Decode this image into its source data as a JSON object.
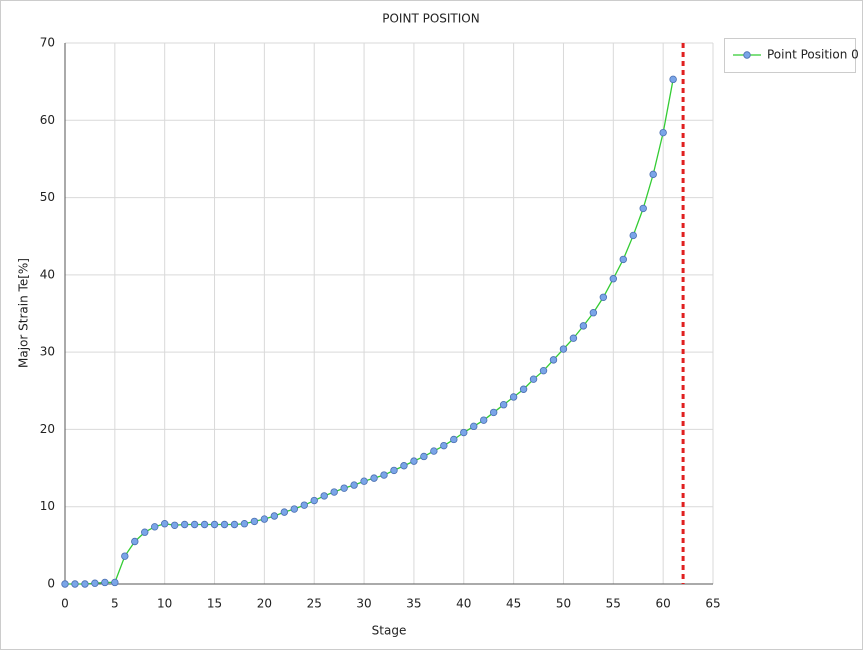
{
  "chart_data": {
    "type": "line",
    "title": "POINT POSITION",
    "x_label": "Stage",
    "y_label": "Major Strain Te[%]",
    "x": [
      0,
      1,
      2,
      3,
      4,
      5,
      6,
      7,
      8,
      9,
      10,
      11,
      12,
      13,
      14,
      15,
      16,
      17,
      18,
      19,
      20,
      21,
      22,
      23,
      24,
      25,
      26,
      27,
      28,
      29,
      30,
      31,
      32,
      33,
      34,
      35,
      36,
      37,
      38,
      39,
      40,
      41,
      42,
      43,
      44,
      45,
      46,
      47,
      48,
      49,
      50,
      51,
      52,
      53,
      54,
      55,
      56,
      57,
      58,
      59,
      60,
      61
    ],
    "series": [
      {
        "name": "Point Position 0",
        "color": "#33cc33",
        "marker_color": "#7aa5e8",
        "values": [
          0,
          0,
          0,
          0.1,
          0.2,
          0.2,
          3.6,
          5.5,
          6.7,
          7.4,
          7.8,
          7.6,
          7.7,
          7.7,
          7.7,
          7.7,
          7.7,
          7.7,
          7.8,
          8.1,
          8.4,
          8.8,
          9.3,
          9.7,
          10.2,
          10.8,
          11.4,
          11.9,
          12.4,
          12.8,
          13.3,
          13.7,
          14.1,
          14.7,
          15.3,
          15.9,
          16.5,
          17.2,
          17.9,
          18.7,
          19.6,
          20.4,
          21.2,
          22.2,
          23.2,
          24.2,
          25.2,
          26.5,
          27.6,
          29.0,
          30.4,
          31.8,
          33.4,
          35.1,
          37.1,
          39.5,
          42.0,
          45.1,
          48.6,
          53.0,
          58.4,
          65.3
        ]
      }
    ],
    "marker_x": 62,
    "marker_color": "#e02020",
    "xlim": [
      0,
      65
    ],
    "xticks": [
      0,
      5,
      10,
      15,
      20,
      25,
      30,
      35,
      40,
      45,
      50,
      55,
      60,
      65
    ],
    "ylim": [
      0,
      70
    ],
    "yticks": [
      0,
      10,
      20,
      30,
      40,
      50,
      60,
      70
    ],
    "grid": true,
    "legend": "top-right"
  }
}
